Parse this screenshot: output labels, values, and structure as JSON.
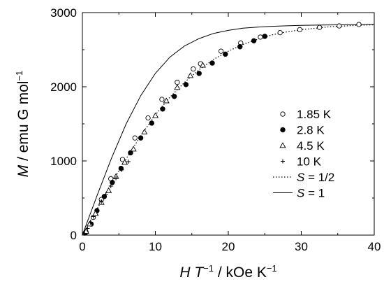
{
  "chart_data": {
    "type": "scatter",
    "xlabel": "H T⁻¹ / kOe K⁻¹",
    "ylabel": "M / emu G mol⁻¹",
    "xlim": [
      0,
      40
    ],
    "ylim": [
      0,
      3000
    ],
    "x_ticks": [
      "0",
      "10",
      "20",
      "30",
      "40"
    ],
    "y_ticks": [
      "0",
      "1000",
      "2000",
      "3000"
    ],
    "grid": false,
    "legend_position": "right",
    "series": [
      {
        "name": "1.85 K",
        "marker": "open-circle",
        "points": [
          [
            0.5,
            40
          ],
          [
            1.5,
            240
          ],
          [
            2.6,
            480
          ],
          [
            3.9,
            760
          ],
          [
            5.5,
            1020
          ],
          [
            7.2,
            1310
          ],
          [
            9.0,
            1580
          ],
          [
            10.9,
            1830
          ],
          [
            13.0,
            2060
          ],
          [
            15.2,
            2240
          ],
          [
            16.2,
            2310
          ],
          [
            19.0,
            2480
          ],
          [
            21.7,
            2590
          ],
          [
            24.4,
            2670
          ],
          [
            27.1,
            2730
          ],
          [
            29.8,
            2770
          ],
          [
            32.5,
            2800
          ],
          [
            35.2,
            2820
          ],
          [
            37.9,
            2840
          ]
        ]
      },
      {
        "name": "2.8 K",
        "marker": "filled-circle",
        "points": [
          [
            0.4,
            30
          ],
          [
            1.2,
            150
          ],
          [
            2.0,
            330
          ],
          [
            3.0,
            520
          ],
          [
            4.1,
            710
          ],
          [
            5.3,
            900
          ],
          [
            6.6,
            1110
          ],
          [
            8.0,
            1310
          ],
          [
            9.5,
            1510
          ],
          [
            11.0,
            1700
          ],
          [
            12.6,
            1870
          ],
          [
            14.2,
            2030
          ],
          [
            16.0,
            2180
          ],
          [
            17.8,
            2320
          ],
          [
            19.6,
            2440
          ],
          [
            21.6,
            2540
          ],
          [
            23.5,
            2620
          ],
          [
            25.0,
            2680
          ]
        ]
      },
      {
        "name": "4.5 K",
        "marker": "open-triangle",
        "points": [
          [
            0.5,
            50
          ],
          [
            1.0,
            150
          ],
          [
            1.8,
            290
          ],
          [
            2.6,
            440
          ],
          [
            3.6,
            600
          ],
          [
            4.6,
            790
          ],
          [
            5.8,
            980
          ],
          [
            7.0,
            1160
          ],
          [
            8.5,
            1390
          ],
          [
            10.0,
            1610
          ],
          [
            11.5,
            1810
          ],
          [
            13.0,
            1990
          ],
          [
            14.8,
            2150
          ],
          [
            16.5,
            2290
          ]
        ]
      },
      {
        "name": "10 K",
        "marker": "plus",
        "points": [
          [
            0.3,
            20
          ],
          [
            0.7,
            90
          ],
          [
            1.1,
            170
          ],
          [
            1.5,
            250
          ],
          [
            2.0,
            340
          ],
          [
            2.6,
            450
          ],
          [
            3.2,
            550
          ],
          [
            3.9,
            660
          ],
          [
            4.6,
            770
          ],
          [
            5.4,
            880
          ],
          [
            6.3,
            990
          ]
        ]
      },
      {
        "name": "S = 1/2",
        "line": "dotted",
        "points": [
          [
            0,
            0
          ],
          [
            2,
            350
          ],
          [
            4,
            700
          ],
          [
            6,
            1030
          ],
          [
            8,
            1340
          ],
          [
            10,
            1620
          ],
          [
            12,
            1860
          ],
          [
            14,
            2060
          ],
          [
            16,
            2230
          ],
          [
            18,
            2370
          ],
          [
            20,
            2480
          ],
          [
            22,
            2570
          ],
          [
            24,
            2640
          ],
          [
            26,
            2700
          ],
          [
            28,
            2740
          ],
          [
            30,
            2770
          ],
          [
            32,
            2790
          ],
          [
            34,
            2810
          ],
          [
            36,
            2820
          ],
          [
            38,
            2830
          ],
          [
            40,
            2835
          ]
        ]
      },
      {
        "name": "S = 1",
        "line": "solid",
        "points": [
          [
            0,
            0
          ],
          [
            2,
            530
          ],
          [
            4,
            1040
          ],
          [
            6,
            1500
          ],
          [
            8,
            1880
          ],
          [
            10,
            2180
          ],
          [
            12,
            2400
          ],
          [
            14,
            2550
          ],
          [
            16,
            2650
          ],
          [
            18,
            2720
          ],
          [
            20,
            2760
          ],
          [
            22,
            2790
          ],
          [
            24,
            2805
          ],
          [
            26,
            2815
          ],
          [
            28,
            2822
          ],
          [
            30,
            2827
          ],
          [
            32,
            2831
          ],
          [
            34,
            2834
          ],
          [
            36,
            2836
          ],
          [
            38,
            2838
          ],
          [
            40,
            2840
          ]
        ]
      }
    ],
    "legend": [
      {
        "marker": "open-circle",
        "label": "1.85 K"
      },
      {
        "marker": "filled-circle",
        "label": "2.8 K"
      },
      {
        "marker": "open-triangle",
        "label": "4.5 K"
      },
      {
        "marker": "plus",
        "label": "10 K"
      },
      {
        "line": "dotted",
        "label": "S = 1/2"
      },
      {
        "line": "solid",
        "label": "S = 1"
      }
    ]
  }
}
